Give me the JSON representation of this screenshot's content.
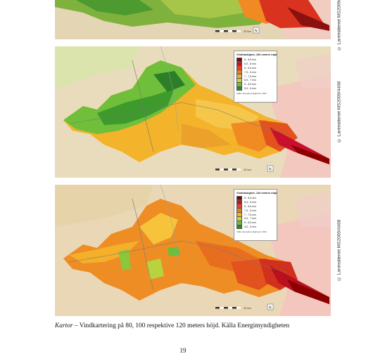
{
  "maps": [
    {
      "id": "map-80m",
      "legend": null
    },
    {
      "id": "map-100m",
      "legend": {
        "title": "Vindhastighet, 100 meters höjd",
        "items": [
          {
            "label": "8 - 8,5 m/s",
            "color": "#8b0000"
          },
          {
            "label": "6,5 - 8 m/s",
            "color": "#c8102e"
          },
          {
            "label": "6 - 6,5 m/s",
            "color": "#e8431f"
          },
          {
            "label": "7,5 - 6 m/s",
            "color": "#f07a1a"
          },
          {
            "label": "7 - 7,5 m/s",
            "color": "#f5b21a"
          },
          {
            "label": "6,5 - 7 m/s",
            "color": "#c8d63a"
          },
          {
            "label": "6 - 6,5 m/s",
            "color": "#6abf3a"
          },
          {
            "label": "5,5 - 6 m/s",
            "color": "#2e8b2e"
          }
        ],
        "source": "Källa: Energimyndigheten 2011"
      }
    },
    {
      "id": "map-120m",
      "legend": {
        "title": "Vindhastighet, 120 meters höjd",
        "items": [
          {
            "label": "8 - 8,5 m/s",
            "color": "#8b0000"
          },
          {
            "label": "6,5 - 8 m/s",
            "color": "#c8102e"
          },
          {
            "label": "6 - 6,5 m/s",
            "color": "#e8431f"
          },
          {
            "label": "7,5 - 6 m/s",
            "color": "#f07a1a"
          },
          {
            "label": "7 - 7,5 m/s",
            "color": "#f5b21a"
          },
          {
            "label": "6,5 - 7 m/s",
            "color": "#c8d63a"
          },
          {
            "label": "6 - 6,5 m/s",
            "color": "#6abf3a"
          },
          {
            "label": "4,5 - 6 m/s",
            "color": "#2e8b2e"
          }
        ],
        "source": "Källa: Energimyndigheten 2011"
      }
    }
  ],
  "copyright": "© Lantmäteriet MS2009/4468",
  "scale_label": "20 km",
  "north_symbol": "N",
  "caption": {
    "lead": "Kartor",
    "text": " – Vindkartering på 80, 100 respektive 120 meters höjd. Källa Energimyndigheten"
  },
  "page_number": "19",
  "colors": {
    "background_terrain": "#e8d9b8",
    "sea_pink": "#f0b8b8",
    "dark_red": "#8b0000",
    "red": "#c8102e",
    "orange_red": "#e8431f",
    "orange": "#f07a1a",
    "yellow_orange": "#f5b21a",
    "yellow_green": "#c8d63a",
    "green": "#6abf3a",
    "dark_green": "#2e8b2e"
  }
}
